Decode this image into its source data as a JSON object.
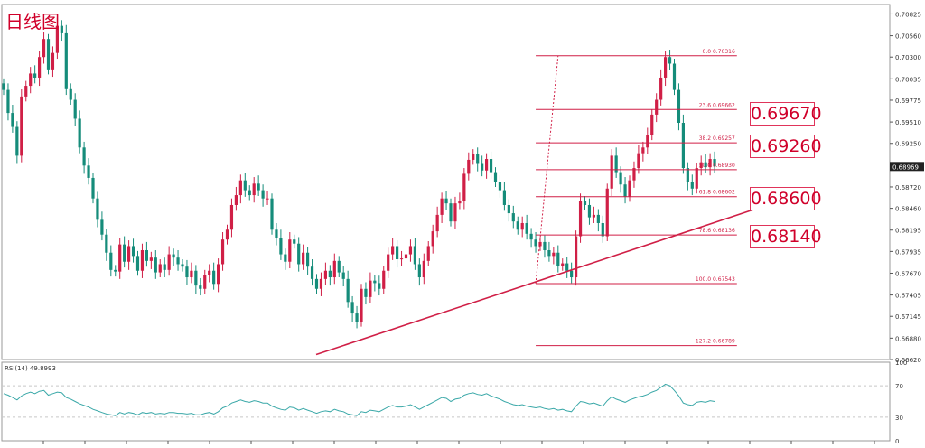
{
  "title": "日线图",
  "colors": {
    "bull": "#d01f46",
    "bear": "#158c7a",
    "fib": "#d01f46",
    "rsi": "#3aa8a8",
    "grid": "#c8c8c8"
  },
  "level_boxes": [
    "0.69670",
    "0.69260",
    "0.68600",
    "0.68140"
  ],
  "chart_data": {
    "type": "candlestick",
    "y_ticks": [
      "0.70825",
      "0.70560",
      "0.70300",
      "0.70035",
      "0.69775",
      "0.69510",
      "0.69250",
      "0.68985",
      "0.68720",
      "0.68460",
      "0.68195",
      "0.67935",
      "0.67670",
      "0.67405",
      "0.67145",
      "0.66880",
      "0.66620"
    ],
    "ylim": [
      0.6662,
      0.7094
    ],
    "current_price": "0.68969",
    "fibonacci": [
      {
        "label": "0.0",
        "value": "0.70316"
      },
      {
        "label": "23.6",
        "value": "0.69662"
      },
      {
        "label": "38.2",
        "value": "0.69257"
      },
      {
        "label": "50.0",
        "value": "0.68930"
      },
      {
        "label": "61.8",
        "value": "0.68602"
      },
      {
        "label": "78.6",
        "value": "0.68136"
      },
      {
        "label": "100.0",
        "value": "0.67543"
      },
      {
        "label": "127.2",
        "value": "0.66789"
      }
    ],
    "trendline": [
      {
        "bar": 0,
        "price": 0.6668
      },
      {
        "bar": 80,
        "price": 0.6852
      }
    ],
    "closes": [
      0.699,
      0.6962,
      0.6945,
      0.691,
      0.6982,
      0.6995,
      0.701,
      0.7005,
      0.703,
      0.7052,
      0.7015,
      0.7035,
      0.7068,
      0.706,
      0.6992,
      0.6978,
      0.6955,
      0.692,
      0.6898,
      0.6883,
      0.6858,
      0.6832,
      0.6814,
      0.6792,
      0.6771,
      0.6769,
      0.6802,
      0.6781,
      0.68,
      0.6788,
      0.677,
      0.6795,
      0.6782,
      0.6786,
      0.6768,
      0.6778,
      0.6771,
      0.679,
      0.6786,
      0.6778,
      0.6775,
      0.6762,
      0.677,
      0.6752,
      0.6748,
      0.6765,
      0.677,
      0.6754,
      0.6778,
      0.6808,
      0.682,
      0.685,
      0.6862,
      0.688,
      0.6868,
      0.6862,
      0.6876,
      0.6868,
      0.6858,
      0.6858,
      0.682,
      0.681,
      0.679,
      0.6781,
      0.6808,
      0.6803,
      0.6778,
      0.6792,
      0.6775,
      0.676,
      0.6748,
      0.676,
      0.677,
      0.6762,
      0.6782,
      0.6768,
      0.676,
      0.6732,
      0.6718,
      0.6708,
      0.6748,
      0.6738,
      0.6758,
      0.6755,
      0.6748,
      0.677,
      0.679,
      0.68,
      0.6784,
      0.6785,
      0.679,
      0.68,
      0.6778,
      0.6762,
      0.6782,
      0.68,
      0.6818,
      0.6838,
      0.6858,
      0.6852,
      0.683,
      0.6852,
      0.6855,
      0.6888,
      0.6905,
      0.6912,
      0.69,
      0.6892,
      0.6906,
      0.689,
      0.6878,
      0.6868,
      0.685,
      0.684,
      0.683,
      0.682,
      0.6828,
      0.6815,
      0.6808,
      0.68,
      0.6805,
      0.6795,
      0.6788,
      0.6792,
      0.6776,
      0.6779,
      0.677,
      0.6762,
      0.6812,
      0.6855,
      0.685,
      0.6835,
      0.6838,
      0.6828,
      0.6812,
      0.687,
      0.691,
      0.689,
      0.6875,
      0.686,
      0.688,
      0.6895,
      0.6913,
      0.692,
      0.6935,
      0.696,
      0.6978,
      0.7005,
      0.703,
      0.7022,
      0.699,
      0.695,
      0.6895,
      0.6878,
      0.687,
      0.6895,
      0.6902,
      0.6896,
      0.6906,
      0.6897
    ],
    "rsi": {
      "label": "RSI(14) 49.8993",
      "levels": [
        "100",
        "70",
        "30",
        "0"
      ],
      "values": [
        60,
        58,
        55,
        52,
        57,
        60,
        62,
        60,
        63,
        64,
        58,
        60,
        62,
        61,
        55,
        53,
        50,
        47,
        45,
        43,
        40,
        38,
        36,
        34,
        33,
        32,
        36,
        34,
        36,
        35,
        33,
        36,
        35,
        36,
        34,
        35,
        34,
        36,
        36,
        35,
        35,
        34,
        35,
        33,
        33,
        35,
        36,
        34,
        37,
        42,
        44,
        48,
        50,
        52,
        50,
        49,
        51,
        50,
        48,
        48,
        44,
        42,
        40,
        39,
        43,
        42,
        39,
        41,
        39,
        37,
        35,
        37,
        38,
        37,
        40,
        38,
        37,
        34,
        33,
        32,
        37,
        36,
        39,
        38,
        37,
        40,
        43,
        45,
        43,
        43,
        44,
        46,
        43,
        40,
        43,
        46,
        49,
        52,
        55,
        54,
        50,
        53,
        54,
        58,
        60,
        61,
        59,
        58,
        60,
        57,
        55,
        53,
        50,
        48,
        46,
        45,
        46,
        44,
        43,
        42,
        43,
        41,
        40,
        41,
        39,
        40,
        38,
        37,
        44,
        50,
        49,
        47,
        48,
        46,
        44,
        51,
        56,
        53,
        51,
        49,
        52,
        54,
        56,
        57,
        59,
        62,
        64,
        68,
        72,
        70,
        64,
        57,
        48,
        46,
        45,
        49,
        50,
        49,
        51,
        50
      ]
    }
  }
}
